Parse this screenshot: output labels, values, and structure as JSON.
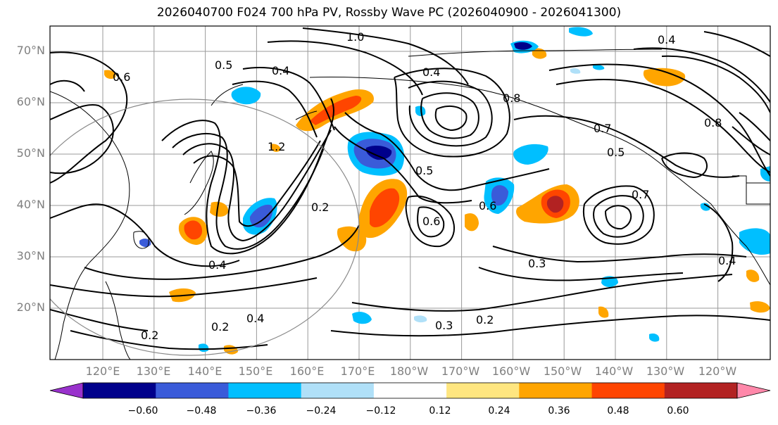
{
  "title": "2026040700 F024 700 hPa PV, Rossby Wave PC (2026040900 - 2026041300)",
  "lat_labels": [
    "70°N",
    "60°N",
    "50°N",
    "40°N",
    "30°N",
    "20°N"
  ],
  "lon_labels": [
    "120°E",
    "130°E",
    "140°E",
    "150°E",
    "160°E",
    "170°E",
    "180°W",
    "170°W",
    "160°W",
    "150°W",
    "140°W",
    "130°W",
    "120°W"
  ],
  "contour_labels": [
    "1.0",
    "0.5",
    "0.4",
    "0.6",
    "0.8",
    "0.7",
    "0.4",
    "1.2",
    "0.2",
    "0.3",
    "0.5",
    "0.6",
    "0.4",
    "0.4",
    "0.3",
    "0.2",
    "0.2",
    "0.4",
    "0.2",
    "0.7",
    "0.6",
    "0.5",
    "0.8",
    "0.4"
  ],
  "colorbar": {
    "ticks": [
      "−0.60",
      "−0.48",
      "−0.36",
      "−0.24",
      "−0.12",
      "0.12",
      "0.24",
      "0.36",
      "0.48",
      "0.60"
    ],
    "colors": [
      "#9932cc",
      "#00008b",
      "#3a5bd9",
      "#00bfff",
      "#b0e0f8",
      "#ffffff",
      "#ffe680",
      "#ffa500",
      "#ff4500",
      "#b22222",
      "#ff88aa"
    ]
  }
}
